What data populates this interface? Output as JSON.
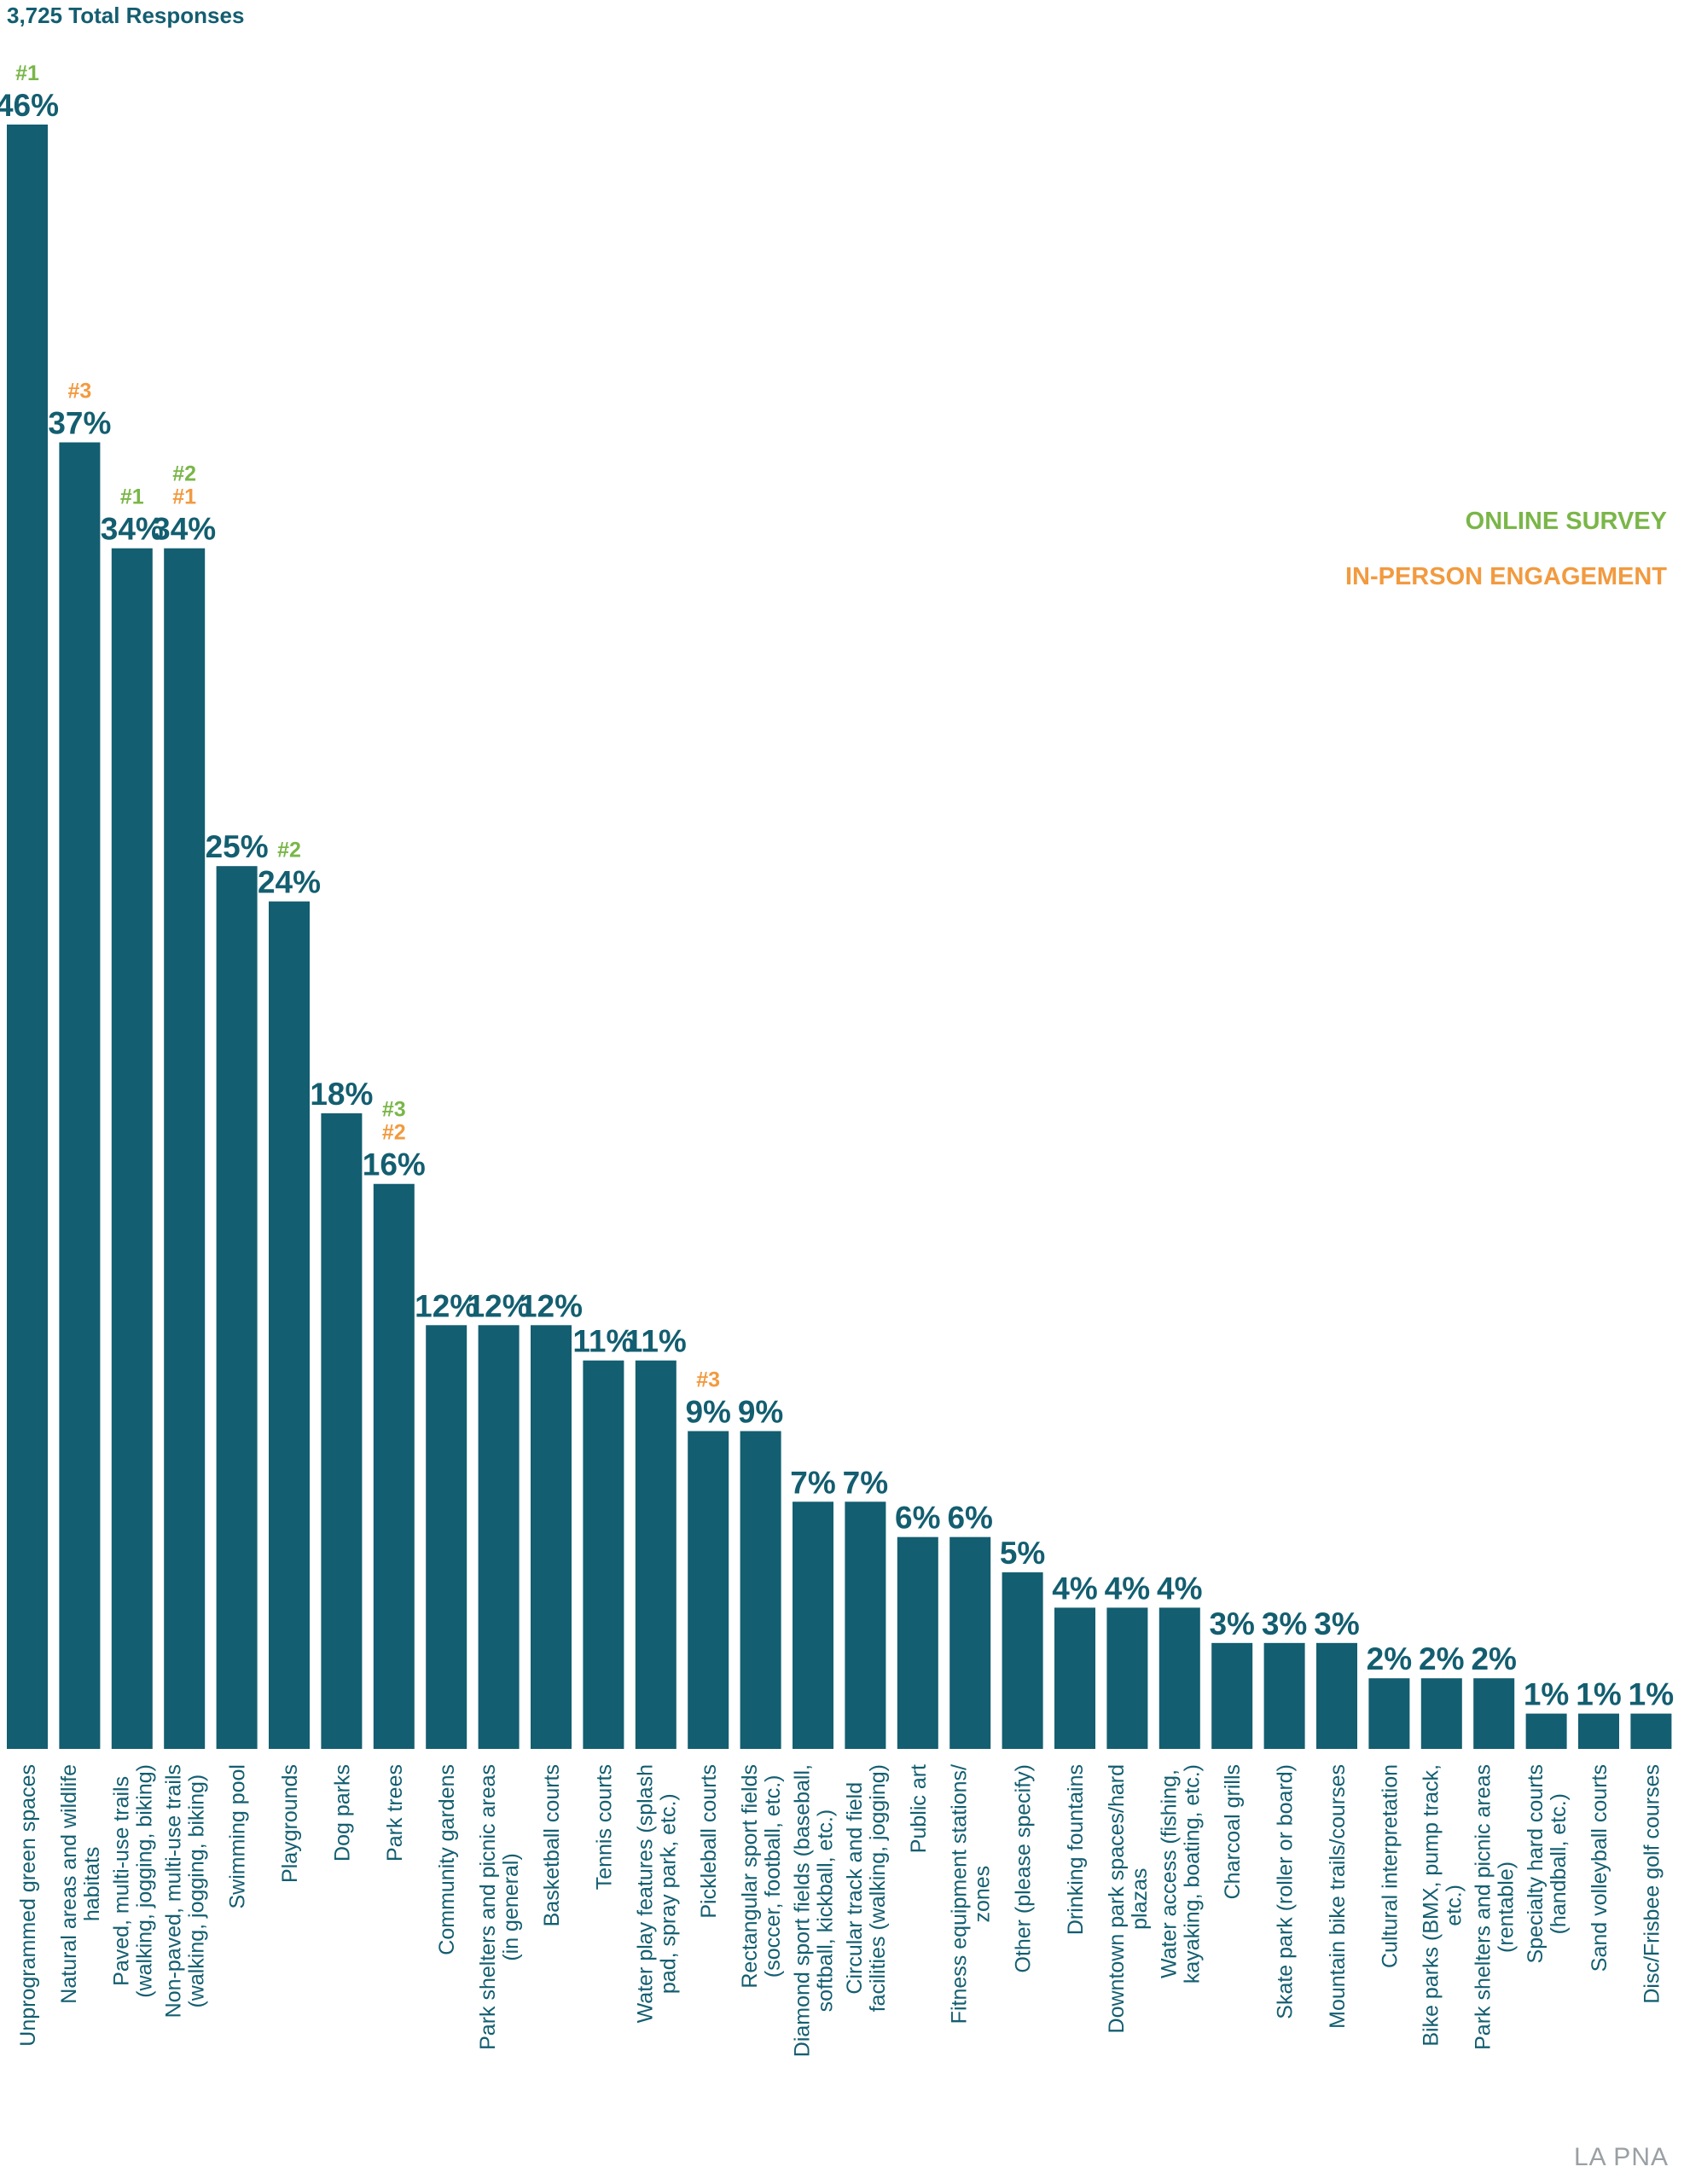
{
  "colors": {
    "bar": "#135e70",
    "online": "#7ab648",
    "inperson": "#f29a3f",
    "text": "#135e70",
    "source": "#9aa0a3"
  },
  "chart_data": {
    "type": "bar",
    "subtitle": "3,725 Total Responses",
    "ylim": [
      0,
      46
    ],
    "legend": [
      {
        "name": "ONLINE SURVEY",
        "color": "#7ab648"
      },
      {
        "name": "IN-PERSON ENGAGEMENT",
        "color": "#f29a3f"
      }
    ],
    "legend_position": "top-right",
    "source": "LA PNA",
    "bars": [
      {
        "label": [
          "Unprogrammed green spaces"
        ],
        "value": 46,
        "value_label": "46%",
        "ranks": [
          {
            "text": "#1",
            "type": "online"
          }
        ]
      },
      {
        "label": [
          "Natural areas and wildlife",
          "habitats"
        ],
        "value": 37,
        "value_label": "37%",
        "ranks": [
          {
            "text": "#3",
            "type": "inperson"
          }
        ]
      },
      {
        "label": [
          "Paved, multi-use trails",
          "(walking, jogging, biking)"
        ],
        "value": 34,
        "value_label": "34%",
        "ranks": [
          {
            "text": "#1",
            "type": "online"
          }
        ]
      },
      {
        "label": [
          "Non-paved, multi-use trails",
          "(walking, jogging, biking)"
        ],
        "value": 34,
        "value_label": "34%",
        "ranks": [
          {
            "text": "#2",
            "type": "online"
          },
          {
            "text": "#1",
            "type": "inperson"
          }
        ]
      },
      {
        "label": [
          "Swimming pool"
        ],
        "value": 25,
        "value_label": "25%",
        "ranks": []
      },
      {
        "label": [
          "Playgrounds"
        ],
        "value": 24,
        "value_label": "24%",
        "ranks": [
          {
            "text": "#2",
            "type": "online"
          }
        ]
      },
      {
        "label": [
          "Dog parks"
        ],
        "value": 18,
        "value_label": "18%",
        "ranks": []
      },
      {
        "label": [
          "Park trees"
        ],
        "value": 16,
        "value_label": "16%",
        "ranks": [
          {
            "text": "#3",
            "type": "online"
          },
          {
            "text": "#2",
            "type": "inperson"
          }
        ]
      },
      {
        "label": [
          "Community gardens"
        ],
        "value": 12,
        "value_label": "12%",
        "ranks": []
      },
      {
        "label": [
          "Park shelters and picnic areas",
          "(in general)"
        ],
        "value": 12,
        "value_label": "12%",
        "ranks": []
      },
      {
        "label": [
          "Basketball courts"
        ],
        "value": 12,
        "value_label": "12%",
        "ranks": []
      },
      {
        "label": [
          "Tennis courts"
        ],
        "value": 11,
        "value_label": "11%",
        "ranks": []
      },
      {
        "label": [
          "Water play features (splash",
          "pad, spray park, etc.)"
        ],
        "value": 11,
        "value_label": "11%",
        "ranks": []
      },
      {
        "label": [
          "Pickleball courts"
        ],
        "value": 9,
        "value_label": "9%",
        "ranks": [
          {
            "text": "#3",
            "type": "inperson"
          }
        ]
      },
      {
        "label": [
          "Rectangular sport fields",
          "(soccer, football, etc.)"
        ],
        "value": 9,
        "value_label": "9%",
        "ranks": []
      },
      {
        "label": [
          "Diamond sport fields (baseball,",
          "softball, kickball, etc.)"
        ],
        "value": 7,
        "value_label": "7%",
        "ranks": []
      },
      {
        "label": [
          "Circular track and field",
          "facilities (walking, jogging)"
        ],
        "value": 7,
        "value_label": "7%",
        "ranks": []
      },
      {
        "label": [
          "Public art"
        ],
        "value": 6,
        "value_label": "6%",
        "ranks": []
      },
      {
        "label": [
          "Fitness equipment stations/",
          "zones"
        ],
        "value": 6,
        "value_label": "6%",
        "ranks": []
      },
      {
        "label": [
          "Other (please specify)"
        ],
        "value": 5,
        "value_label": "5%",
        "ranks": []
      },
      {
        "label": [
          "Drinking fountains"
        ],
        "value": 4,
        "value_label": "4%",
        "ranks": []
      },
      {
        "label": [
          "Downtown park spaces/hard",
          "plazas"
        ],
        "value": 4,
        "value_label": "4%",
        "ranks": []
      },
      {
        "label": [
          "Water access (fishing,",
          "kayaking, boating, etc.)"
        ],
        "value": 4,
        "value_label": "4%",
        "ranks": []
      },
      {
        "label": [
          "Charcoal grills"
        ],
        "value": 3,
        "value_label": "3%",
        "ranks": []
      },
      {
        "label": [
          "Skate park (roller or board)"
        ],
        "value": 3,
        "value_label": "3%",
        "ranks": []
      },
      {
        "label": [
          "Mountain bike trails/courses"
        ],
        "value": 3,
        "value_label": "3%",
        "ranks": []
      },
      {
        "label": [
          "Cultural interpretation"
        ],
        "value": 2,
        "value_label": "2%",
        "ranks": []
      },
      {
        "label": [
          "Bike parks (BMX, pump track,",
          "etc.)"
        ],
        "value": 2,
        "value_label": "2%",
        "ranks": []
      },
      {
        "label": [
          "Park shelters and picnic areas",
          "(rentable)"
        ],
        "value": 2,
        "value_label": "2%",
        "ranks": []
      },
      {
        "label": [
          "Specialty hard courts",
          "(handball, etc.)"
        ],
        "value": 1,
        "value_label": "1%",
        "ranks": []
      },
      {
        "label": [
          "Sand volleyball courts"
        ],
        "value": 1,
        "value_label": "1%",
        "ranks": []
      },
      {
        "label": [
          "Disc/Frisbee golf courses"
        ],
        "value": 1,
        "value_label": "1%",
        "ranks": []
      }
    ]
  }
}
